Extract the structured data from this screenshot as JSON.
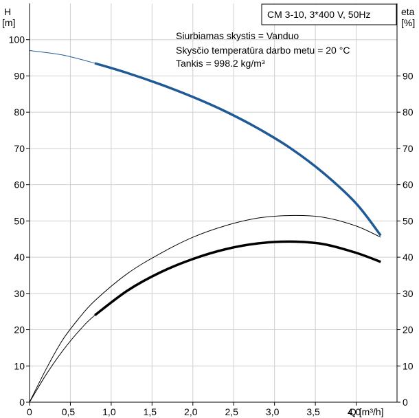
{
  "chart_data": {
    "type": "line",
    "title_box": "CM 3-10, 3*400 V, 50Hz",
    "annotations": [
      "Siurbiamas skystis = Vanduo",
      "Skysčio temperatūra darbo metu = 20 °C",
      "Tankis = 998.2 kg/m³"
    ],
    "left_axis": {
      "label_line1": "H",
      "label_line2": "[m]",
      "range": [
        0,
        110
      ],
      "ticks": [
        0,
        10,
        20,
        30,
        40,
        50,
        60,
        70,
        80,
        90,
        100
      ]
    },
    "right_axis": {
      "label_line1": "eta",
      "label_line2": "[%]",
      "range": [
        0,
        110
      ],
      "ticks": [
        0,
        10,
        20,
        30,
        40,
        50,
        60,
        70,
        80,
        90
      ]
    },
    "x_axis": {
      "label": "Q [m³/h]",
      "range": [
        0,
        4.5
      ],
      "ticks": [
        "0",
        "0,5",
        "1,0",
        "1,5",
        "2,0",
        "2,5",
        "3,0",
        "3,5",
        "4,0"
      ],
      "tick_values": [
        0,
        0.5,
        1.0,
        1.5,
        2.0,
        2.5,
        3.0,
        3.5,
        4.0
      ]
    },
    "grid": true,
    "series": [
      {
        "key": "head",
        "axis": "left",
        "color": "#1f5a96",
        "x": [
          0,
          0.4,
          0.8,
          1.2,
          1.6,
          2.0,
          2.4,
          2.8,
          3.2,
          3.6,
          4.0,
          4.3
        ],
        "values": [
          97,
          95.8,
          93.5,
          90.8,
          87.7,
          84.2,
          80.2,
          75.5,
          70,
          63.2,
          54.8,
          46
        ],
        "bold_from": 0.8
      },
      {
        "key": "efficiency_1",
        "axis": "right",
        "color": "#000000",
        "x": [
          0,
          0.2,
          0.4,
          0.6,
          0.8,
          1.2,
          1.6,
          2.0,
          2.4,
          2.8,
          3.2,
          3.6,
          4.0,
          4.3
        ],
        "values": [
          0,
          9,
          17,
          23,
          28,
          35.5,
          41,
          45.5,
          48.7,
          50.8,
          51.5,
          51,
          48.6,
          45.5
        ],
        "bold_from": 99
      },
      {
        "key": "efficiency_2",
        "axis": "right",
        "color": "#000000",
        "x": [
          0,
          0.2,
          0.4,
          0.6,
          0.8,
          1.2,
          1.6,
          2.0,
          2.4,
          2.8,
          3.2,
          3.6,
          4.0,
          4.3
        ],
        "values": [
          0,
          7.5,
          14,
          19.5,
          24,
          30.8,
          35.8,
          39.5,
          42.2,
          43.8,
          44.3,
          43.6,
          41.2,
          38.7
        ],
        "bold_from": 0.8
      }
    ]
  }
}
